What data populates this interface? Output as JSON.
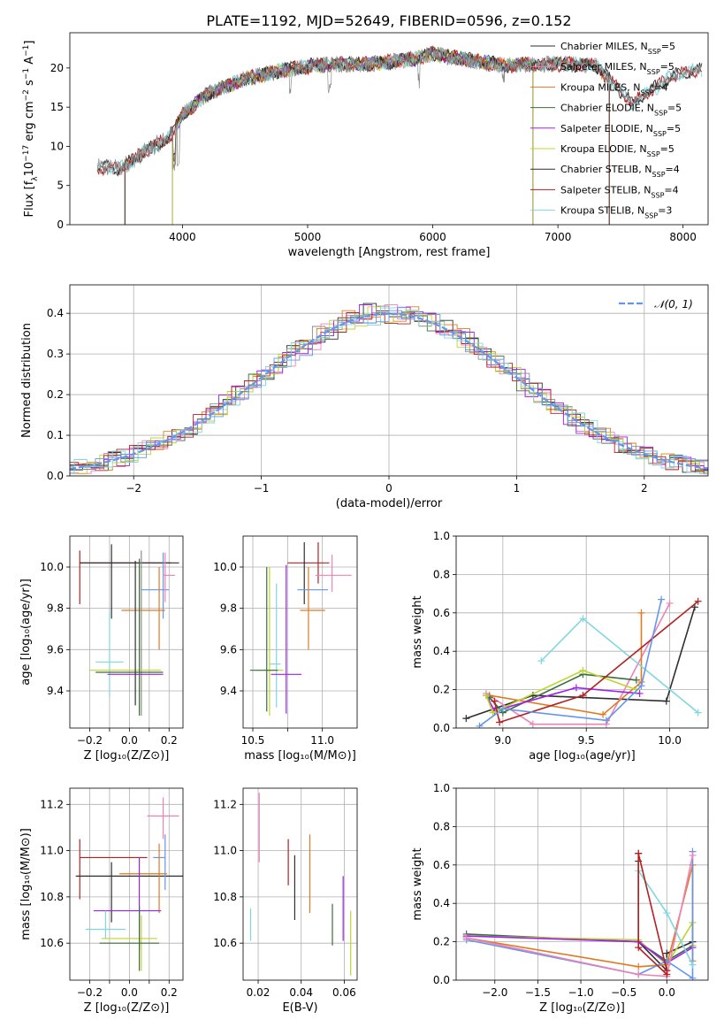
{
  "title": "PLATE=1192, MJD=52649, FIBERID=0596, z=0.152",
  "colors": {
    "C0": "#6495ed",
    "C1": "#e07a22",
    "C2": "#3a6e3a",
    "C3": "#b22222",
    "C4": "#a020f0",
    "C5": "#2f2f2f",
    "C6": "#ee82b8",
    "C7": "#8b8b8b",
    "C8": "#bfd430",
    "C9": "#7fd7de",
    "grid": "#b0b0b0"
  },
  "chart_data": [
    {
      "id": "spectrum",
      "type": "line",
      "xlabel": "wavelength [Angstrom, rest frame]",
      "ylabel_parts": [
        "Flux [f",
        "λ",
        "10",
        "−17",
        " erg cm",
        "−2",
        " s",
        "−1",
        " A",
        "−1",
        "]"
      ],
      "xlim": [
        3100,
        8200
      ],
      "ylim": [
        0,
        24.5
      ],
      "xticks": [
        4000,
        5000,
        6000,
        7000,
        8000
      ],
      "yticks": [
        0,
        5,
        10,
        15,
        20
      ],
      "grid": false,
      "legend_position": "right",
      "legend": [
        {
          "name": "Chabrier MILES, N",
          "n": "5",
          "color": "C5"
        },
        {
          "name": "Salpeter MILES, N",
          "n": "5",
          "color": "C6"
        },
        {
          "name": "Kroupa MILES, N",
          "n": "4",
          "color": "C1"
        },
        {
          "name": "Chabrier ELODIE, N",
          "n": "5",
          "color": "C2"
        },
        {
          "name": "Salpeter ELODIE, N",
          "n": "5",
          "color": "C4"
        },
        {
          "name": "Kroupa ELODIE, N",
          "n": "5",
          "color": "C8"
        },
        {
          "name": "Chabrier STELIB, N",
          "n": "4",
          "color": "C5"
        },
        {
          "name": "Salpeter STELIB, N",
          "n": "4",
          "color": "C3"
        },
        {
          "name": "Kroupa STELIB, N",
          "n": "3",
          "color": "C9"
        }
      ],
      "continuum_wavelength": [
        3320,
        3500,
        3700,
        3900,
        4000,
        4200,
        4500,
        4800,
        5000,
        5200,
        5500,
        5800,
        6000,
        6300,
        6600,
        6800,
        7000,
        7300,
        7600,
        7900,
        8100
      ],
      "continuum_flux": [
        7.3,
        7.2,
        9.3,
        11.3,
        14.0,
        16.7,
        18.6,
        19.7,
        20.2,
        20.5,
        20.5,
        21.0,
        21.8,
        21.0,
        20.3,
        20.5,
        20.5,
        20.4,
        15.5,
        18.8,
        19.8
      ],
      "observed_range": [
        3320,
        8150
      ],
      "model_cutoffs": [
        {
          "name": "Salpeter MILES",
          "low": 3540,
          "high": 7410,
          "color": "C6"
        },
        {
          "name": "Kroupa MILES",
          "low": 3540,
          "high": 7410,
          "color": "C1"
        },
        {
          "name": "Chabrier MILES",
          "low": 3540,
          "high": 7410,
          "color": "C5"
        },
        {
          "name": "Chabrier ELODIE",
          "low": 3920,
          "high": 6800,
          "color": "C2"
        },
        {
          "name": "Salpeter ELODIE",
          "low": 3920,
          "high": 6800,
          "color": "C4"
        },
        {
          "name": "Kroupa ELODIE",
          "low": 3920,
          "high": 6800,
          "color": "C8"
        }
      ]
    },
    {
      "id": "residuals",
      "type": "histogram",
      "xlabel": "(data-model)/error",
      "ylabel": "Normed distribution",
      "xlim": [
        -2.5,
        2.5
      ],
      "ylim": [
        0,
        0.47
      ],
      "xticks": [
        -2,
        -1,
        0,
        1,
        2
      ],
      "yticks": [
        0.0,
        0.1,
        0.2,
        0.3,
        0.4
      ],
      "grid": true,
      "legend_position": "top-right",
      "legend": [
        {
          "name": "𝒩(0, 1)",
          "color": "C0",
          "dashed": true
        }
      ],
      "bin_width": 0.1,
      "series_colors": [
        "C5",
        "C6",
        "C1",
        "C2",
        "C4",
        "C8",
        "C7",
        "C3",
        "C9",
        "C0"
      ]
    },
    {
      "id": "age-vs-Z",
      "type": "errorbar",
      "xlabel": "Z [log₁₀(Z/Z⊙)]",
      "ylabel": "age  [log₁₀(age/yr)]",
      "xlim": [
        -0.3,
        0.27
      ],
      "ylim": [
        9.22,
        10.15
      ],
      "xticks": [
        -0.2,
        -0.1,
        0.0,
        0.1,
        0.2
      ],
      "xticklabels": [
        "−0.2",
        "",
        "0.0",
        "",
        "0.2"
      ],
      "yticks": [
        9.4,
        9.6,
        9.8,
        10.0
      ],
      "grid": true,
      "points": [
        {
          "x": -0.25,
          "y": 9.95,
          "xerr": 0,
          "yerr": 0.13,
          "color": "C3"
        },
        {
          "x": -0.02,
          "y": 10.02,
          "xerr": 0.23,
          "yerr": 0,
          "color": "C3"
        },
        {
          "x": -0.09,
          "y": 9.93,
          "xerr": 0,
          "yerr": 0.18,
          "color": "C5"
        },
        {
          "x": 0.0,
          "y": 10.02,
          "xerr": 0.25,
          "yerr": 0,
          "color": "C5"
        },
        {
          "x": 0.13,
          "y": 9.89,
          "xerr": 0.07,
          "yerr": 0,
          "color": "C0"
        },
        {
          "x": 0.17,
          "y": 9.91,
          "xerr": 0,
          "yerr": 0.16,
          "color": "C0"
        },
        {
          "x": 0.07,
          "y": 9.79,
          "xerr": 0.11,
          "yerr": 0,
          "color": "C1"
        },
        {
          "x": 0.15,
          "y": 9.8,
          "xerr": 0,
          "yerr": 0.2,
          "color": "C1"
        },
        {
          "x": 0.18,
          "y": 9.95,
          "xerr": 0,
          "yerr": 0.12,
          "color": "C6"
        },
        {
          "x": 0.2,
          "y": 9.96,
          "xerr": 0.03,
          "yerr": 0,
          "color": "C6"
        },
        {
          "x": 0.06,
          "y": 9.68,
          "xerr": 0,
          "yerr": 0.4,
          "color": "C7"
        },
        {
          "x": -0.1,
          "y": 9.54,
          "xerr": 0.07,
          "yerr": 0,
          "color": "C9"
        },
        {
          "x": -0.1,
          "y": 9.58,
          "xerr": 0,
          "yerr": 0.21,
          "color": "C9"
        },
        {
          "x": -0.02,
          "y": 9.5,
          "xerr": 0.18,
          "yerr": 0,
          "color": "C8"
        },
        {
          "x": 0.05,
          "y": 9.64,
          "xerr": 0,
          "yerr": 0.35,
          "color": "C8"
        },
        {
          "x": 0.0,
          "y": 9.49,
          "xerr": 0.17,
          "yerr": 0,
          "color": "C2"
        },
        {
          "x": 0.05,
          "y": 9.66,
          "xerr": 0,
          "yerr": 0.38,
          "color": "C2"
        },
        {
          "x": 0.03,
          "y": 9.48,
          "xerr": 0.14,
          "yerr": 0,
          "color": "C4"
        },
        {
          "x": 0.03,
          "y": 9.68,
          "xerr": 0,
          "yerr": 0.35,
          "color": "C5"
        }
      ]
    },
    {
      "id": "age-vs-mass",
      "type": "errorbar",
      "xlabel": "mass [log₁₀(M/M⊙)]",
      "xlim": [
        10.43,
        11.25
      ],
      "ylim": [
        9.22,
        10.15
      ],
      "xticks": [
        10.5,
        10.75,
        11.0
      ],
      "xticklabels": [
        "10.5",
        "",
        "11.0"
      ],
      "yticks": [
        9.4,
        9.6,
        9.8,
        10.0
      ],
      "grid": true,
      "points": [
        {
          "x": 10.9,
          "y": 10.02,
          "xerr": 0.15,
          "yerr": 0,
          "color": "C3"
        },
        {
          "x": 10.97,
          "y": 10.02,
          "xerr": 0,
          "yerr": 0.1,
          "color": "C3"
        },
        {
          "x": 10.87,
          "y": 9.97,
          "xerr": 0,
          "yerr": 0.15,
          "color": "C5"
        },
        {
          "x": 10.93,
          "y": 9.89,
          "xerr": 0.11,
          "yerr": 0,
          "color": "C0"
        },
        {
          "x": 11.08,
          "y": 9.96,
          "xerr": 0.13,
          "yerr": 0,
          "color": "C6"
        },
        {
          "x": 11.07,
          "y": 9.97,
          "xerr": 0,
          "yerr": 0.09,
          "color": "C6"
        },
        {
          "x": 10.93,
          "y": 9.79,
          "xerr": 0.09,
          "yerr": 0,
          "color": "C1"
        },
        {
          "x": 10.9,
          "y": 9.8,
          "xerr": 0,
          "yerr": 0.2,
          "color": "C1"
        },
        {
          "x": 10.66,
          "y": 9.53,
          "xerr": 0.04,
          "yerr": 0,
          "color": "C9"
        },
        {
          "x": 10.67,
          "y": 9.62,
          "xerr": 0,
          "yerr": 0.3,
          "color": "C9"
        },
        {
          "x": 10.62,
          "y": 9.5,
          "xerr": 0.1,
          "yerr": 0,
          "color": "C8"
        },
        {
          "x": 10.62,
          "y": 9.64,
          "xerr": 0,
          "yerr": 0.36,
          "color": "C8"
        },
        {
          "x": 10.6,
          "y": 9.65,
          "xerr": 0,
          "yerr": 0.35,
          "color": "C2"
        },
        {
          "x": 10.58,
          "y": 9.5,
          "xerr": 0.1,
          "yerr": 0,
          "color": "C2"
        },
        {
          "x": 10.74,
          "y": 9.48,
          "xerr": 0.11,
          "yerr": 0,
          "color": "C4"
        },
        {
          "x": 10.74,
          "y": 9.65,
          "xerr": 0,
          "yerr": 0.36,
          "color": "C4"
        }
      ]
    },
    {
      "id": "mass-weight-vs-age",
      "type": "line",
      "xlabel": "age  [log₁₀(age/yr)]",
      "ylabel": "mass weight",
      "xlim": [
        8.72,
        10.23
      ],
      "ylim": [
        0,
        1.0
      ],
      "xticks": [
        9.0,
        9.5,
        10.0
      ],
      "yticks": [
        0.0,
        0.2,
        0.4,
        0.6,
        0.8,
        1.0
      ],
      "grid": true,
      "series": [
        {
          "color": "C5",
          "x": [
            8.78,
            9.18,
            9.98,
            10.15
          ],
          "y": [
            0.05,
            0.17,
            0.14,
            0.63
          ]
        },
        {
          "color": "C6",
          "x": [
            8.9,
            9.18,
            9.62,
            10.0
          ],
          "y": [
            0.18,
            0.02,
            0.02,
            0.65
          ]
        },
        {
          "color": "C1",
          "x": [
            8.92,
            9.6,
            9.83,
            9.83
          ],
          "y": [
            0.17,
            0.07,
            0.24,
            0.6
          ]
        },
        {
          "color": "C2",
          "x": [
            8.92,
            9.0,
            9.48,
            9.8
          ],
          "y": [
            0.16,
            0.08,
            0.28,
            0.25
          ]
        },
        {
          "color": "C4",
          "x": [
            8.9,
            8.95,
            9.44,
            9.82
          ],
          "y": [
            0.17,
            0.09,
            0.21,
            0.18
          ]
        },
        {
          "color": "C8",
          "x": [
            8.9,
            8.94,
            9.48,
            9.8
          ],
          "y": [
            0.17,
            0.08,
            0.3,
            0.2
          ]
        },
        {
          "color": "C9",
          "x": [
            9.23,
            9.48,
            10.17
          ],
          "y": [
            0.35,
            0.57,
            0.08
          ]
        },
        {
          "color": "C3",
          "x": [
            8.95,
            8.98,
            9.48,
            10.17
          ],
          "y": [
            0.14,
            0.03,
            0.17,
            0.66
          ]
        },
        {
          "color": "C0",
          "x": [
            8.86,
            9.0,
            9.62,
            9.83,
            9.95
          ],
          "y": [
            0.01,
            0.1,
            0.04,
            0.22,
            0.67
          ]
        }
      ]
    },
    {
      "id": "mass-vs-Z",
      "type": "errorbar",
      "xlabel": "Z [log₁₀(Z/Z⊙)]",
      "ylabel": "mass [log₁₀(M/M⊙)]",
      "xlim": [
        -0.3,
        0.27
      ],
      "ylim": [
        10.44,
        11.27
      ],
      "xticks": [
        -0.2,
        -0.1,
        0.0,
        0.1,
        0.2
      ],
      "xticklabels": [
        "−0.2",
        "",
        "0.0",
        "",
        "0.2"
      ],
      "yticks": [
        10.6,
        10.8,
        11.0,
        11.2
      ],
      "grid": true,
      "points": [
        {
          "x": -0.25,
          "y": 10.92,
          "xerr": 0,
          "yerr": 0.13,
          "color": "C3"
        },
        {
          "x": -0.08,
          "y": 10.97,
          "xerr": 0.17,
          "yerr": 0,
          "color": "C3"
        },
        {
          "x": -0.09,
          "y": 10.82,
          "xerr": 0,
          "yerr": 0.13,
          "color": "C5"
        },
        {
          "x": 0.0,
          "y": 10.89,
          "xerr": 0.27,
          "yerr": 0,
          "color": "C5"
        },
        {
          "x": 0.18,
          "y": 10.95,
          "xerr": 0,
          "yerr": 0.12,
          "color": "C0"
        },
        {
          "x": 0.15,
          "y": 10.97,
          "xerr": 0.03,
          "yerr": 0,
          "color": "C0"
        },
        {
          "x": 0.07,
          "y": 10.9,
          "xerr": 0.12,
          "yerr": 0,
          "color": "C1"
        },
        {
          "x": 0.15,
          "y": 10.88,
          "xerr": 0,
          "yerr": 0.15,
          "color": "C1"
        },
        {
          "x": 0.17,
          "y": 11.15,
          "xerr": 0.08,
          "yerr": 0,
          "color": "C6"
        },
        {
          "x": 0.17,
          "y": 11.14,
          "xerr": 0,
          "yerr": 0.09,
          "color": "C6"
        },
        {
          "x": -0.01,
          "y": 10.74,
          "xerr": 0.17,
          "yerr": 0,
          "color": "C4"
        },
        {
          "x": 0.05,
          "y": 10.77,
          "xerr": 0,
          "yerr": 0.2,
          "color": "C4"
        },
        {
          "x": -0.12,
          "y": 10.66,
          "xerr": 0.1,
          "yerr": 0,
          "color": "C9"
        },
        {
          "x": -0.12,
          "y": 10.68,
          "xerr": 0,
          "yerr": 0.06,
          "color": "C9"
        },
        {
          "x": 0.0,
          "y": 10.62,
          "xerr": 0.14,
          "yerr": 0,
          "color": "C8"
        },
        {
          "x": 0.06,
          "y": 10.6,
          "xerr": 0,
          "yerr": 0.12,
          "color": "C8"
        },
        {
          "x": 0.0,
          "y": 10.6,
          "xerr": 0.15,
          "yerr": 0,
          "color": "C2"
        },
        {
          "x": 0.05,
          "y": 10.62,
          "xerr": 0,
          "yerr": 0.14,
          "color": "C2"
        }
      ]
    },
    {
      "id": "mass-vs-EBV",
      "type": "errorbar",
      "xlabel": "E(B-V)",
      "xlim": [
        0.013,
        0.066
      ],
      "ylim": [
        10.44,
        11.27
      ],
      "xticks": [
        0.02,
        0.04,
        0.06
      ],
      "yticks": [
        10.6,
        10.8,
        11.0,
        11.2
      ],
      "grid": true,
      "points": [
        {
          "x": 0.0165,
          "y": 10.68,
          "xerr": 0,
          "yerr": 0.07,
          "color": "C9"
        },
        {
          "x": 0.0205,
          "y": 11.1,
          "xerr": 0,
          "yerr": 0.15,
          "color": "C6"
        },
        {
          "x": 0.034,
          "y": 10.95,
          "xerr": 0,
          "yerr": 0.1,
          "color": "C3"
        },
        {
          "x": 0.037,
          "y": 10.84,
          "xerr": 0,
          "yerr": 0.14,
          "color": "C5"
        },
        {
          "x": 0.044,
          "y": 10.9,
          "xerr": 0,
          "yerr": 0.17,
          "color": "C1"
        },
        {
          "x": 0.0545,
          "y": 10.68,
          "xerr": 0,
          "yerr": 0.09,
          "color": "C2"
        },
        {
          "x": 0.0595,
          "y": 10.75,
          "xerr": 0,
          "yerr": 0.14,
          "color": "C4"
        },
        {
          "x": 0.063,
          "y": 10.6,
          "xerr": 0,
          "yerr": 0.14,
          "color": "C8"
        }
      ]
    },
    {
      "id": "mass-weight-vs-Z",
      "type": "line",
      "xlabel": "Z [log₁₀(Z/Z⊙)]",
      "ylabel": "mass weight",
      "xlim": [
        -2.45,
        0.48
      ],
      "ylim": [
        0,
        1.0
      ],
      "xticks": [
        -2.0,
        -1.5,
        -1.0,
        -0.5,
        0.0
      ],
      "xticklabels": [
        "−2.0",
        "−1.5",
        "−1.0",
        "−0.5",
        "0.0"
      ],
      "yticks": [
        0.0,
        0.2,
        0.4,
        0.6,
        0.8,
        1.0
      ],
      "grid": true,
      "series": [
        {
          "color": "C5",
          "x": [
            -0.33,
            -0.33,
            0.0,
            0.0,
            0.3
          ],
          "y": [
            0.62,
            0.2,
            0.05,
            0.14,
            0.2
          ]
        },
        {
          "color": "C2",
          "x": [
            -2.33,
            -0.33,
            0.0,
            0.3
          ],
          "y": [
            0.24,
            0.2,
            0.1,
            0.18
          ]
        },
        {
          "color": "C8",
          "x": [
            -2.33,
            -0.33,
            0.0,
            0.3,
            0.3
          ],
          "y": [
            0.23,
            0.21,
            0.08,
            0.3,
            0.18
          ]
        },
        {
          "color": "C4",
          "x": [
            -2.33,
            -0.33,
            0.0,
            0.3
          ],
          "y": [
            0.23,
            0.2,
            0.09,
            0.17
          ]
        },
        {
          "color": "C1",
          "x": [
            -2.33,
            -0.33,
            0.0,
            0.3,
            0.3
          ],
          "y": [
            0.22,
            0.07,
            0.08,
            0.6,
            0.1
          ]
        },
        {
          "color": "C0",
          "x": [
            -2.33,
            -0.33,
            0.0,
            0.3,
            0.3
          ],
          "y": [
            0.21,
            0.03,
            0.1,
            0.01,
            0.67
          ]
        },
        {
          "color": "C6",
          "x": [
            -2.33,
            -0.33,
            0.0,
            0.3
          ],
          "y": [
            0.22,
            0.03,
            0.02,
            0.65
          ]
        },
        {
          "color": "C9",
          "x": [
            -0.33,
            0.0,
            0.3
          ],
          "y": [
            0.57,
            0.35,
            0.08
          ]
        },
        {
          "color": "C3",
          "x": [
            -0.33,
            -0.33,
            0.0,
            0.0,
            -0.33
          ],
          "y": [
            0.66,
            0.17,
            0.03,
            0.05,
            0.66
          ]
        }
      ]
    }
  ]
}
